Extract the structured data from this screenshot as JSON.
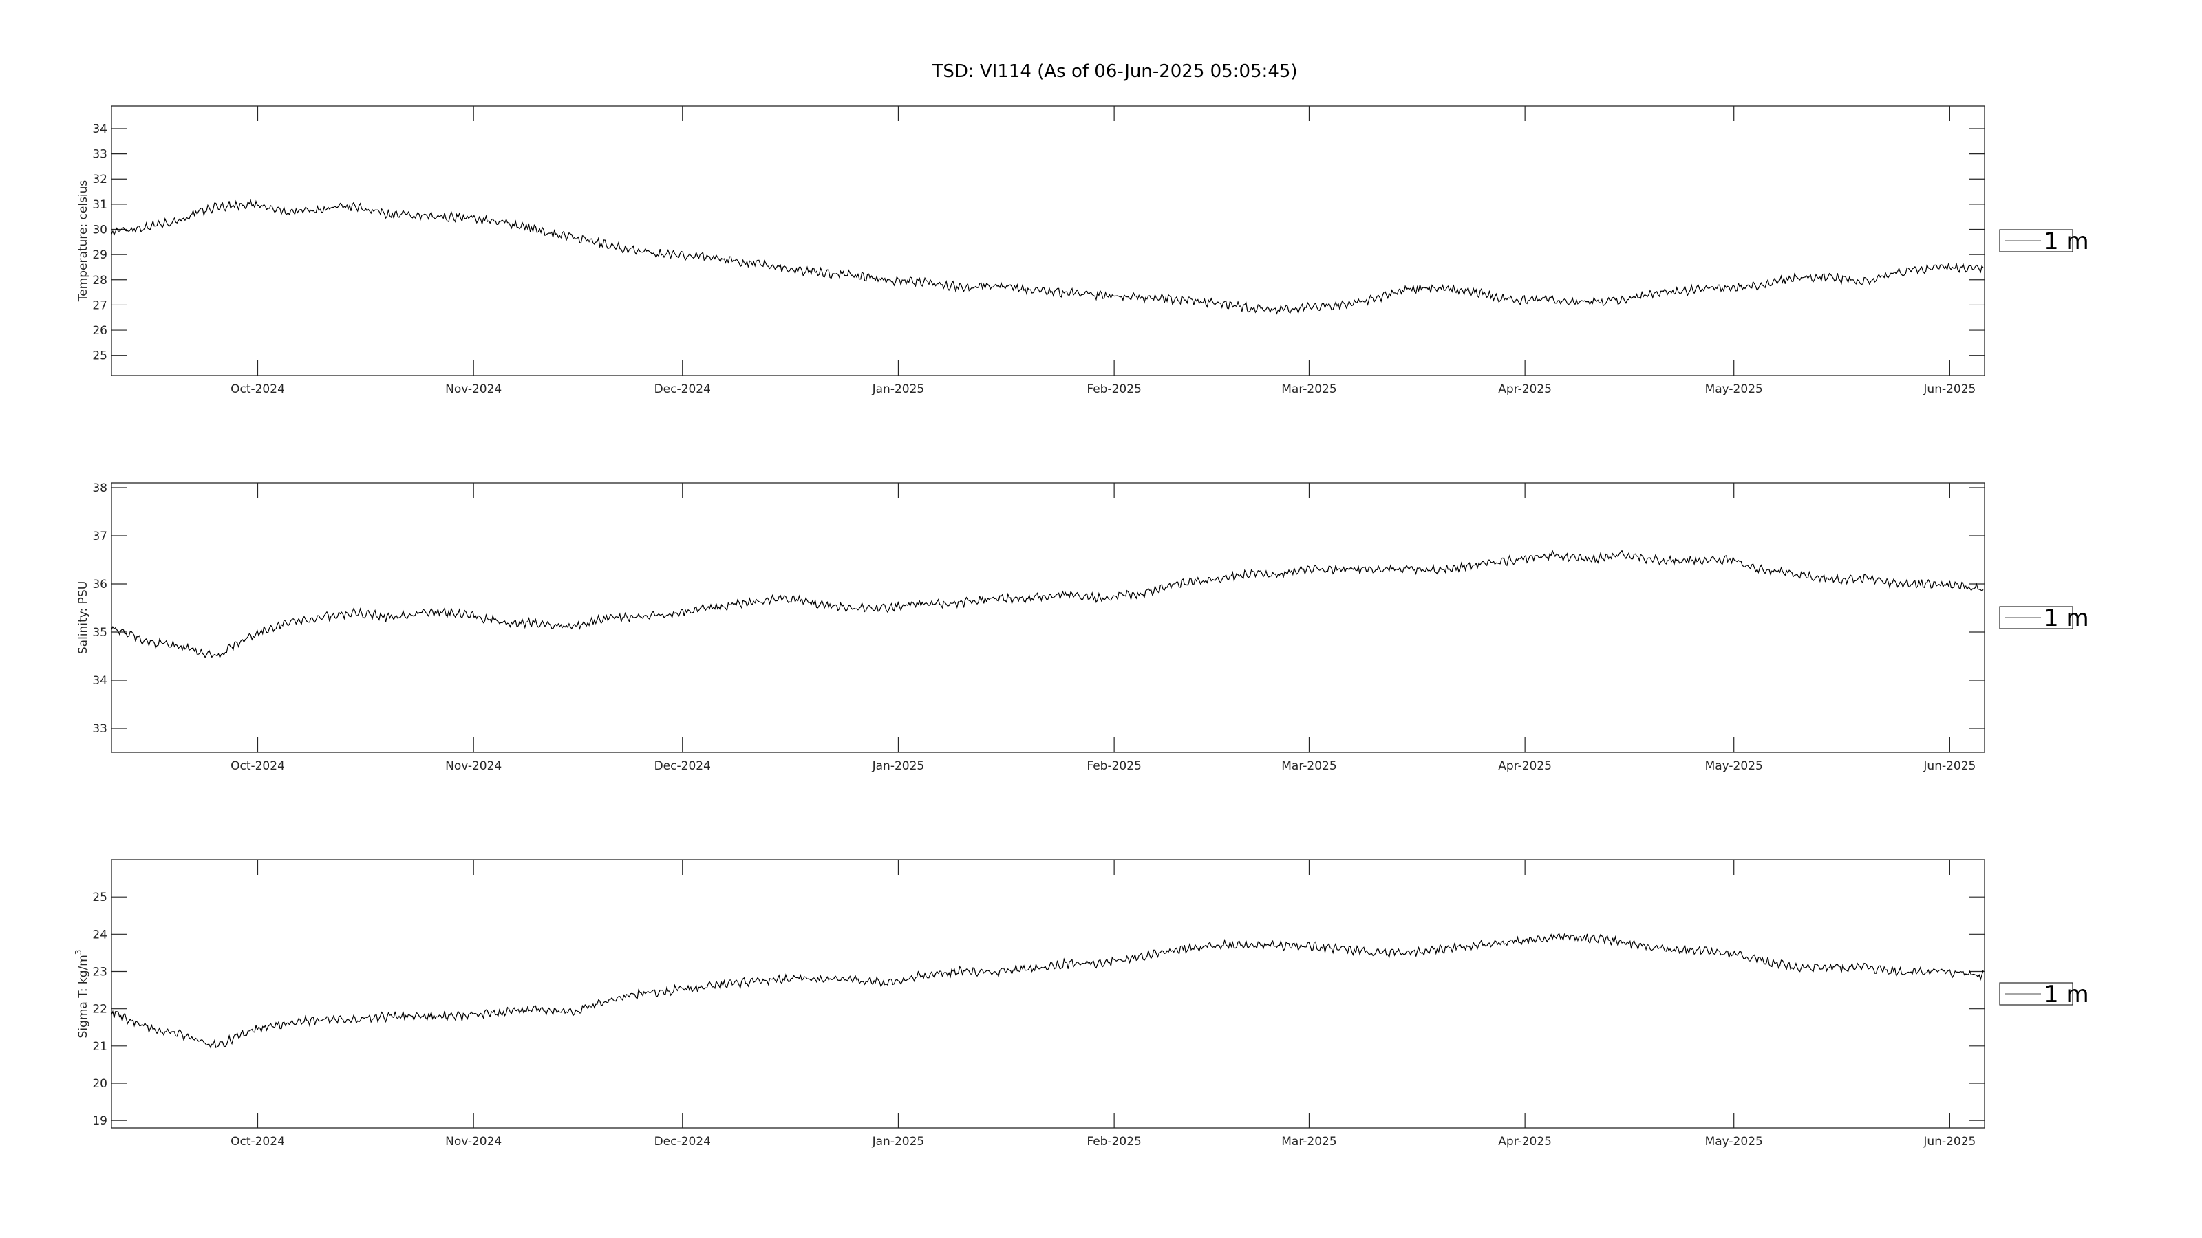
{
  "figure": {
    "title": "TSD: VI114 (As of 06-Jun-2025 05:05:45)"
  },
  "chart_data": [
    {
      "type": "line",
      "ylabel": "Temperature:  celsius",
      "yticks": [
        25,
        26,
        27,
        28,
        29,
        30,
        31,
        32,
        33,
        34
      ],
      "ylim": [
        24.2,
        34.9
      ],
      "xlim": [
        "2024-09-10",
        "2025-06-06"
      ],
      "xticks": [
        {
          "date": "2024-10-01",
          "label": "Oct-2024"
        },
        {
          "date": "2024-11-01",
          "label": "Nov-2024"
        },
        {
          "date": "2024-12-01",
          "label": "Dec-2024"
        },
        {
          "date": "2025-01-01",
          "label": "Jan-2025"
        },
        {
          "date": "2025-02-01",
          "label": "Feb-2025"
        },
        {
          "date": "2025-03-01",
          "label": "Mar-2025"
        },
        {
          "date": "2025-04-01",
          "label": "Apr-2025"
        },
        {
          "date": "2025-05-01",
          "label": "May-2025"
        },
        {
          "date": "2025-06-01",
          "label": "Jun-2025"
        }
      ],
      "grid": false,
      "legend_position": "outside-right",
      "series": [
        {
          "name": "1 m",
          "color": "#000000",
          "x": [
            "2024-09-10",
            "2024-09-15",
            "2024-09-20",
            "2024-09-25",
            "2024-09-30",
            "2024-10-05",
            "2024-10-10",
            "2024-10-15",
            "2024-10-20",
            "2024-10-25",
            "2024-10-30",
            "2024-11-05",
            "2024-11-10",
            "2024-11-15",
            "2024-11-20",
            "2024-11-25",
            "2024-11-30",
            "2024-12-05",
            "2024-12-10",
            "2024-12-15",
            "2024-12-20",
            "2024-12-25",
            "2024-12-30",
            "2025-01-05",
            "2025-01-10",
            "2025-01-15",
            "2025-01-20",
            "2025-01-25",
            "2025-01-30",
            "2025-02-05",
            "2025-02-10",
            "2025-02-15",
            "2025-02-20",
            "2025-02-25",
            "2025-03-01",
            "2025-03-05",
            "2025-03-10",
            "2025-03-15",
            "2025-03-20",
            "2025-03-25",
            "2025-03-30",
            "2025-04-05",
            "2025-04-10",
            "2025-04-15",
            "2025-04-20",
            "2025-04-25",
            "2025-04-30",
            "2025-05-05",
            "2025-05-10",
            "2025-05-15",
            "2025-05-20",
            "2025-05-25",
            "2025-05-30",
            "2025-06-06"
          ],
          "y": [
            29.9,
            30.1,
            30.4,
            30.9,
            31.0,
            30.7,
            30.8,
            30.9,
            30.6,
            30.5,
            30.5,
            30.3,
            30.0,
            29.7,
            29.4,
            29.1,
            29.0,
            28.9,
            28.7,
            28.5,
            28.3,
            28.2,
            28.0,
            27.9,
            27.7,
            27.8,
            27.6,
            27.5,
            27.4,
            27.3,
            27.2,
            27.1,
            26.9,
            26.8,
            26.9,
            27.0,
            27.2,
            27.6,
            27.7,
            27.5,
            27.2,
            27.2,
            27.1,
            27.2,
            27.5,
            27.6,
            27.7,
            27.8,
            28.1,
            28.1,
            27.9,
            28.3,
            28.5,
            28.5
          ]
        }
      ]
    },
    {
      "type": "line",
      "ylabel": "Salinity:  PSU",
      "yticks": [
        33,
        34,
        35,
        36,
        37,
        38
      ],
      "ylim": [
        32.5,
        38.1
      ],
      "xlim": [
        "2024-09-10",
        "2025-06-06"
      ],
      "xticks": [
        {
          "date": "2024-10-01",
          "label": "Oct-2024"
        },
        {
          "date": "2024-11-01",
          "label": "Nov-2024"
        },
        {
          "date": "2024-12-01",
          "label": "Dec-2024"
        },
        {
          "date": "2025-01-01",
          "label": "Jan-2025"
        },
        {
          "date": "2025-02-01",
          "label": "Feb-2025"
        },
        {
          "date": "2025-03-01",
          "label": "Mar-2025"
        },
        {
          "date": "2025-04-01",
          "label": "Apr-2025"
        },
        {
          "date": "2025-05-01",
          "label": "May-2025"
        },
        {
          "date": "2025-06-01",
          "label": "Jun-2025"
        }
      ],
      "grid": false,
      "legend_position": "outside-right",
      "series": [
        {
          "name": "1 m",
          "color": "#000000",
          "x": [
            "2024-09-10",
            "2024-09-15",
            "2024-09-20",
            "2024-09-25",
            "2024-09-30",
            "2024-10-05",
            "2024-10-10",
            "2024-10-15",
            "2024-10-20",
            "2024-10-25",
            "2024-10-30",
            "2024-11-05",
            "2024-11-10",
            "2024-11-15",
            "2024-11-20",
            "2024-11-25",
            "2024-11-30",
            "2024-12-05",
            "2024-12-10",
            "2024-12-15",
            "2024-12-20",
            "2024-12-25",
            "2024-12-30",
            "2025-01-05",
            "2025-01-10",
            "2025-01-15",
            "2025-01-20",
            "2025-01-25",
            "2025-01-30",
            "2025-02-05",
            "2025-02-10",
            "2025-02-15",
            "2025-02-20",
            "2025-02-25",
            "2025-03-01",
            "2025-03-05",
            "2025-03-10",
            "2025-03-15",
            "2025-03-20",
            "2025-03-25",
            "2025-03-30",
            "2025-04-05",
            "2025-04-10",
            "2025-04-15",
            "2025-04-20",
            "2025-04-25",
            "2025-04-30",
            "2025-05-05",
            "2025-05-10",
            "2025-05-15",
            "2025-05-20",
            "2025-05-25",
            "2025-05-30",
            "2025-06-06"
          ],
          "y": [
            35.1,
            34.8,
            34.7,
            34.5,
            34.9,
            35.2,
            35.3,
            35.4,
            35.3,
            35.4,
            35.4,
            35.2,
            35.2,
            35.1,
            35.3,
            35.3,
            35.4,
            35.5,
            35.6,
            35.7,
            35.6,
            35.5,
            35.5,
            35.6,
            35.6,
            35.7,
            35.7,
            35.8,
            35.7,
            35.8,
            36.0,
            36.1,
            36.2,
            36.2,
            36.3,
            36.3,
            36.3,
            36.3,
            36.3,
            36.4,
            36.5,
            36.6,
            36.5,
            36.6,
            36.5,
            36.5,
            36.5,
            36.3,
            36.2,
            36.1,
            36.1,
            36.0,
            36.0,
            35.9
          ]
        }
      ]
    },
    {
      "type": "line",
      "ylabel": "Sigma T:  kg/m",
      "ylabel_superscript": "3",
      "yticks": [
        19,
        20,
        21,
        22,
        23,
        24,
        25
      ],
      "ylim": [
        18.8,
        26.0
      ],
      "xlim": [
        "2024-09-10",
        "2025-06-06"
      ],
      "xticks": [
        {
          "date": "2024-10-01",
          "label": "Oct-2024"
        },
        {
          "date": "2024-11-01",
          "label": "Nov-2024"
        },
        {
          "date": "2024-12-01",
          "label": "Dec-2024"
        },
        {
          "date": "2025-01-01",
          "label": "Jan-2025"
        },
        {
          "date": "2025-02-01",
          "label": "Feb-2025"
        },
        {
          "date": "2025-03-01",
          "label": "Mar-2025"
        },
        {
          "date": "2025-04-01",
          "label": "Apr-2025"
        },
        {
          "date": "2025-05-01",
          "label": "May-2025"
        },
        {
          "date": "2025-06-01",
          "label": "Jun-2025"
        }
      ],
      "grid": false,
      "legend_position": "outside-right",
      "series": [
        {
          "name": "1 m",
          "color": "#000000",
          "x": [
            "2024-09-10",
            "2024-09-15",
            "2024-09-20",
            "2024-09-25",
            "2024-09-30",
            "2024-10-05",
            "2024-10-10",
            "2024-10-15",
            "2024-10-20",
            "2024-10-25",
            "2024-10-30",
            "2024-11-05",
            "2024-11-10",
            "2024-11-15",
            "2024-11-20",
            "2024-11-25",
            "2024-11-30",
            "2024-12-05",
            "2024-12-10",
            "2024-12-15",
            "2024-12-20",
            "2024-12-25",
            "2024-12-30",
            "2025-01-05",
            "2025-01-10",
            "2025-01-15",
            "2025-01-20",
            "2025-01-25",
            "2025-01-30",
            "2025-02-05",
            "2025-02-10",
            "2025-02-15",
            "2025-02-20",
            "2025-02-25",
            "2025-03-01",
            "2025-03-05",
            "2025-03-10",
            "2025-03-15",
            "2025-03-20",
            "2025-03-25",
            "2025-03-30",
            "2025-04-05",
            "2025-04-10",
            "2025-04-15",
            "2025-04-20",
            "2025-04-25",
            "2025-04-30",
            "2025-05-05",
            "2025-05-10",
            "2025-05-15",
            "2025-05-20",
            "2025-05-25",
            "2025-05-30",
            "2025-06-06"
          ],
          "y": [
            21.9,
            21.5,
            21.3,
            21.0,
            21.4,
            21.6,
            21.7,
            21.7,
            21.8,
            21.8,
            21.8,
            21.9,
            22.0,
            21.9,
            22.2,
            22.4,
            22.5,
            22.6,
            22.7,
            22.8,
            22.8,
            22.8,
            22.7,
            22.9,
            23.0,
            23.0,
            23.1,
            23.2,
            23.2,
            23.4,
            23.6,
            23.7,
            23.7,
            23.7,
            23.7,
            23.6,
            23.5,
            23.5,
            23.6,
            23.7,
            23.8,
            23.9,
            23.9,
            23.8,
            23.6,
            23.6,
            23.5,
            23.3,
            23.1,
            23.1,
            23.1,
            23.0,
            23.0,
            22.9
          ]
        }
      ]
    }
  ]
}
